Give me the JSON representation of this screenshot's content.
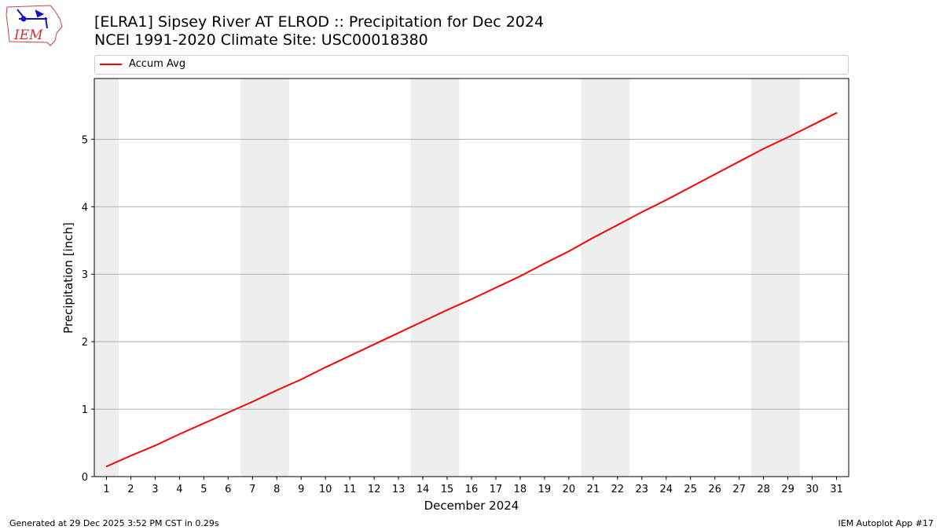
{
  "header": {
    "title_line1": "[ELRA1] Sipsey River  AT ELROD :: Precipitation for Dec 2024",
    "title_line2": "NCEI 1991-2020 Climate Site: USC00018380",
    "logo_text": "IEM"
  },
  "legend": {
    "label": "Accum Avg",
    "color": "#ff0000"
  },
  "footer": {
    "left": "Generated at 29 Dec 2025 3:52 PM CST in 0.29s",
    "right": "IEM Autoplot App #17"
  },
  "chart_data": {
    "type": "line",
    "xlabel": "December 2024",
    "ylabel": "Precipitation [inch]",
    "xlim": [
      0.5,
      31.5
    ],
    "ylim": [
      0,
      5.9
    ],
    "yticks": [
      0,
      1,
      2,
      3,
      4,
      5
    ],
    "grid": "y-major",
    "legend_position": "top",
    "weekend_shading": [
      [
        0.5,
        1.5
      ],
      [
        6.5,
        8.5
      ],
      [
        13.5,
        15.5
      ],
      [
        20.5,
        22.5
      ],
      [
        27.5,
        29.5
      ]
    ],
    "shading_color": "#eeeeee",
    "categories": [
      "1",
      "2",
      "3",
      "4",
      "5",
      "6",
      "7",
      "8",
      "9",
      "10",
      "11",
      "12",
      "13",
      "14",
      "15",
      "16",
      "17",
      "18",
      "19",
      "20",
      "21",
      "22",
      "23",
      "24",
      "25",
      "26",
      "27",
      "28",
      "29",
      "30",
      "31"
    ],
    "series": [
      {
        "name": "Accum Avg",
        "color": "#ff0000",
        "values": [
          0.15,
          0.31,
          0.46,
          0.63,
          0.79,
          0.95,
          1.11,
          1.28,
          1.44,
          1.62,
          1.79,
          1.96,
          2.13,
          2.3,
          2.47,
          2.63,
          2.8,
          2.97,
          3.16,
          3.34,
          3.54,
          3.73,
          3.92,
          4.1,
          4.29,
          4.48,
          4.67,
          4.86,
          5.03,
          5.21,
          5.39
        ]
      }
    ]
  }
}
